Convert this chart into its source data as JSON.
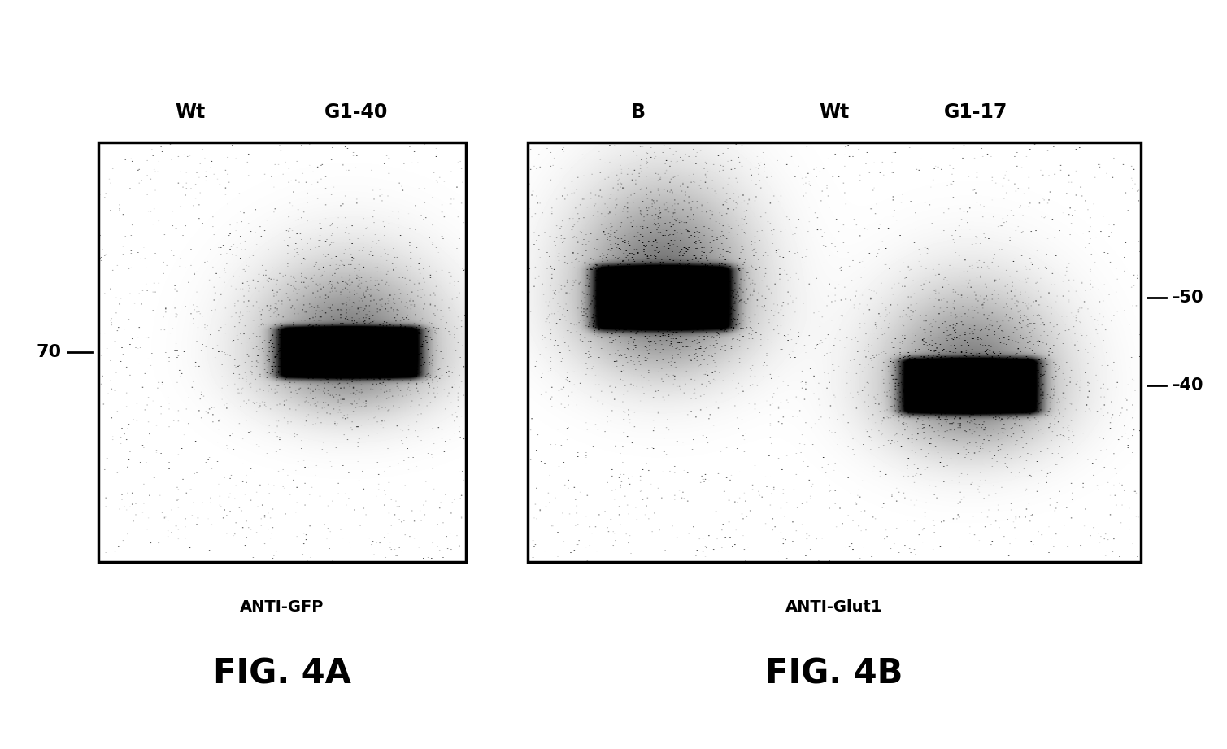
{
  "fig_width": 15.09,
  "fig_height": 9.21,
  "background_color": "#ffffff",
  "panel_A": {
    "label_wt": "Wt",
    "label_g140": "G1-40",
    "marker_label": "70",
    "subtitle": "ANTI-GFP",
    "fig_label": "FIG. 4A"
  },
  "panel_B": {
    "label_b": "B",
    "label_wt": "Wt",
    "label_g117": "G1-17",
    "marker_50_label": "50",
    "marker_40_label": "40",
    "subtitle": "ANTI-Glut1",
    "fig_label": "FIG. 4B"
  }
}
